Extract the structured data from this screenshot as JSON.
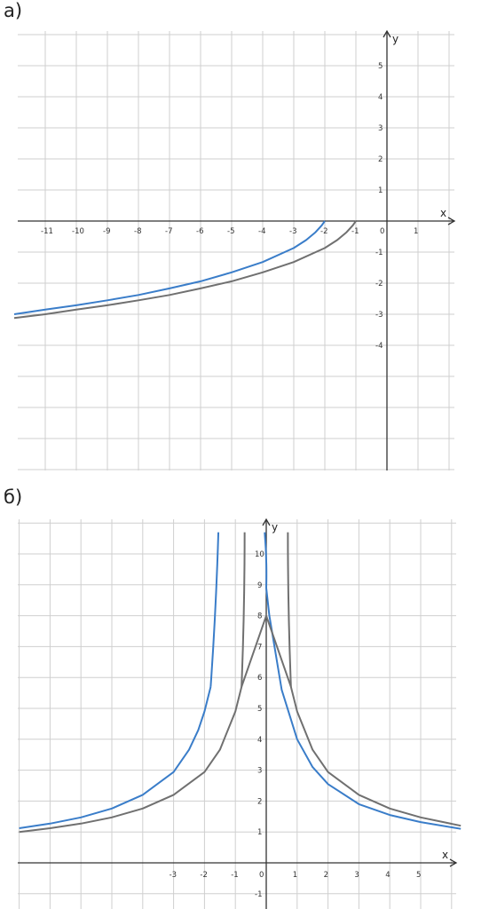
{
  "panels": {
    "a_label": "а)",
    "b_label": "б)"
  },
  "chart_data": [
    {
      "type": "line",
      "panel": "а)",
      "xlabel": "x",
      "ylabel": "y",
      "xlim": [
        -12,
        2
      ],
      "ylim": [
        -8,
        6
      ],
      "x_tick_labels": [
        "-11",
        "-10",
        "-9",
        "-8",
        "-7",
        "-6",
        "-5",
        "-4",
        "-3",
        "-2",
        "-1",
        "0",
        "1"
      ],
      "y_tick_labels": [
        "5",
        "4",
        "3",
        "2",
        "1",
        "-1",
        "-2",
        "-3",
        "-4"
      ],
      "grid": true,
      "series": [
        {
          "color": "#3a7dc9",
          "x": [
            -2,
            -2.1,
            -2.3,
            -2.6,
            -3,
            -4,
            -5,
            -6,
            -7,
            -8,
            -9,
            -10,
            -11,
            -12
          ],
          "y": [
            0,
            -0.14,
            -0.36,
            -0.61,
            -0.87,
            -1.32,
            -1.65,
            -1.94,
            -2.17,
            -2.38,
            -2.55,
            -2.71,
            -2.85,
            -3.0
          ]
        },
        {
          "color": "#707070",
          "x": [
            -1,
            -1.1,
            -1.3,
            -1.6,
            -2,
            -3,
            -4,
            -5,
            -6,
            -7,
            -8,
            -9,
            -10,
            -11,
            -12
          ],
          "y": [
            0,
            -0.14,
            -0.36,
            -0.61,
            -0.87,
            -1.32,
            -1.65,
            -1.94,
            -2.17,
            -2.38,
            -2.55,
            -2.71,
            -2.85,
            -3.0,
            -3.12
          ]
        }
      ]
    },
    {
      "type": "line",
      "panel": "б)",
      "xlabel": "x",
      "ylabel": "y",
      "xlim": [
        -8,
        6.3
      ],
      "ylim": [
        -1.4,
        10.7
      ],
      "x_tick_labels": [
        "-3",
        "-2",
        "-1",
        "0",
        "1",
        "2",
        "3",
        "4",
        "5"
      ],
      "y_tick_labels": [
        "10",
        "9",
        "8",
        "7",
        "6",
        "5",
        "4",
        "3",
        "2",
        "1",
        "-1"
      ],
      "grid": true,
      "series": [
        {
          "color": "#3a7dc9",
          "x": [
            -8,
            -7,
            -6,
            -5,
            -4,
            -3,
            -2.5,
            -2.2,
            -2,
            -1.8,
            0,
            0.1,
            0.5,
            1,
            1.5,
            2,
            3,
            4,
            5,
            6.3
          ],
          "y": [
            1.12,
            1.27,
            1.47,
            1.76,
            2.2,
            2.94,
            3.66,
            4.3,
            4.9,
            5.7,
            8.9,
            8.0,
            5.6,
            4.0,
            3.1,
            2.55,
            1.9,
            1.55,
            1.32,
            1.1
          ]
        },
        {
          "color": "#707070",
          "x": [
            -8,
            -7,
            -6,
            -5,
            -4,
            -3,
            -2,
            -1.5,
            -1,
            -0.8,
            0,
            0.8,
            1,
            1.5,
            2,
            3,
            4,
            5,
            6.3
          ],
          "y": [
            1.0,
            1.12,
            1.27,
            1.47,
            1.76,
            2.2,
            2.94,
            3.66,
            4.9,
            5.7,
            8.0,
            5.7,
            4.9,
            3.66,
            2.94,
            2.2,
            1.76,
            1.47,
            1.2
          ]
        }
      ]
    }
  ]
}
